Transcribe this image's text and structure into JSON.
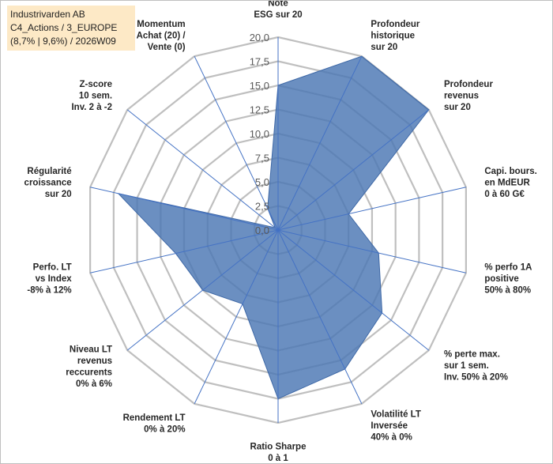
{
  "info_box": {
    "line1": "Industrivarden AB",
    "line2": "C4_Actions / 3_EUROPE",
    "line3": "(8,7% | 9,6%) / 2026W09"
  },
  "colors": {
    "fill": "#4a76b3",
    "stroke": "#3e68a6",
    "grid": "#bfbfbf",
    "spoke": "#4472c4",
    "info_bg": "#fde9c6"
  },
  "chart_data": {
    "type": "radar",
    "title": "",
    "range": [
      0,
      20
    ],
    "tick_step": 2.5,
    "tick_labels": [
      "0,0",
      "2,5",
      "5,0",
      "7,5",
      "10,0",
      "12,5",
      "15,0",
      "17,5",
      "20,0"
    ],
    "axes": [
      [
        "Note",
        "ESG sur 20"
      ],
      [
        "Profondeur",
        "historique",
        "sur 20"
      ],
      [
        "Profondeur",
        "revenus",
        "sur 20"
      ],
      [
        "Capi. bours.",
        "en MdEUR",
        "0 à 60 G€"
      ],
      [
        "% perfo 1A",
        "positive",
        "50% à 80%"
      ],
      [
        "% perte max.",
        "sur 1 sem.",
        "Inv. 50% à 20%"
      ],
      [
        "Volatilité LT",
        "Inversée",
        "40% à 0%"
      ],
      [
        "Ratio Sharpe",
        "0 à 1"
      ],
      [
        "Rendement LT",
        "0% à 20%"
      ],
      [
        "Niveau LT",
        "revenus",
        "reccurents",
        "0% à 6%"
      ],
      [
        "Perfo. LT",
        "vs Index",
        "-8% à 12%"
      ],
      [
        "Régularité",
        "croissance",
        "sur 20"
      ],
      [
        "Z-score",
        "10 sem.",
        "Inv. 2 à -2"
      ],
      [
        "Momentum",
        "Achat (20) /",
        "Vente (0)"
      ]
    ],
    "series": [
      {
        "name": "Industrivarden AB",
        "values": [
          15.0,
          20.0,
          20.0,
          7.5,
          10.7,
          13.8,
          16.0,
          17.5,
          8.5,
          10.0,
          10.9,
          17.0,
          0.4,
          2.5
        ]
      }
    ]
  }
}
